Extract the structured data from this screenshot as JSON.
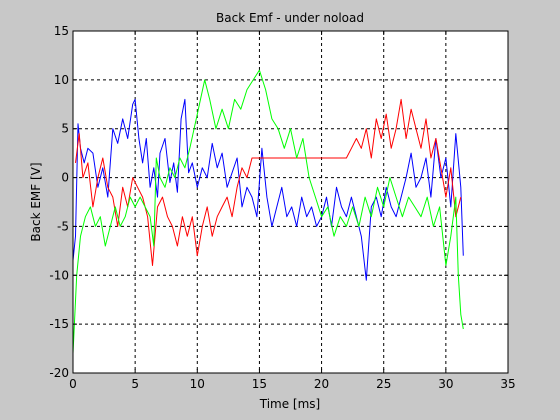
{
  "chart_data": {
    "type": "line",
    "title": "Back Emf - under noload",
    "xlabel": "Time [ms]",
    "ylabel": "Back EMF [V]",
    "xlim": [
      0,
      35
    ],
    "ylim": [
      -20,
      15
    ],
    "xticks": [
      0,
      5,
      10,
      15,
      20,
      25,
      30,
      35
    ],
    "yticks": [
      -20,
      -15,
      -10,
      -5,
      0,
      5,
      10,
      15
    ],
    "grid": true,
    "series": [
      {
        "color": "#0000ff",
        "points": [
          [
            0.0,
            -8.5
          ],
          [
            0.2,
            -6
          ],
          [
            0.4,
            5.5
          ],
          [
            0.6,
            3
          ],
          [
            0.9,
            1.5
          ],
          [
            1.2,
            3
          ],
          [
            1.6,
            2.5
          ],
          [
            2.0,
            -1
          ],
          [
            2.4,
            1
          ],
          [
            2.8,
            -2
          ],
          [
            3.2,
            5
          ],
          [
            3.6,
            3.5
          ],
          [
            4.0,
            6
          ],
          [
            4.4,
            4
          ],
          [
            4.8,
            7.5
          ],
          [
            5.0,
            8
          ],
          [
            5.3,
            4
          ],
          [
            5.6,
            1.5
          ],
          [
            5.9,
            4
          ],
          [
            6.2,
            -1
          ],
          [
            6.5,
            1
          ],
          [
            6.8,
            -2
          ],
          [
            7.0,
            2.5
          ],
          [
            7.4,
            4
          ],
          [
            7.8,
            -0.5
          ],
          [
            8.1,
            1.5
          ],
          [
            8.4,
            -1.5
          ],
          [
            8.7,
            6
          ],
          [
            9.0,
            8
          ],
          [
            9.3,
            0.5
          ],
          [
            9.6,
            1.5
          ],
          [
            10.0,
            -1
          ],
          [
            10.4,
            1
          ],
          [
            10.8,
            0
          ],
          [
            11.2,
            3.5
          ],
          [
            11.6,
            1
          ],
          [
            12.0,
            2.5
          ],
          [
            12.4,
            -1
          ],
          [
            12.8,
            0.5
          ],
          [
            13.2,
            2
          ],
          [
            13.6,
            -3
          ],
          [
            14.0,
            -1
          ],
          [
            14.4,
            -2
          ],
          [
            14.8,
            -4
          ],
          [
            15.2,
            3
          ],
          [
            15.6,
            -2
          ],
          [
            16.0,
            -5
          ],
          [
            16.4,
            -3
          ],
          [
            16.8,
            -1
          ],
          [
            17.2,
            -4
          ],
          [
            17.6,
            -3
          ],
          [
            18.0,
            -5
          ],
          [
            18.4,
            -2
          ],
          [
            18.8,
            -4
          ],
          [
            19.2,
            -3
          ],
          [
            19.6,
            -5
          ],
          [
            20.0,
            -4
          ],
          [
            20.4,
            -2
          ],
          [
            20.8,
            -5
          ],
          [
            21.2,
            -1
          ],
          [
            21.6,
            -3
          ],
          [
            22.0,
            -4
          ],
          [
            22.4,
            -2
          ],
          [
            22.8,
            -4
          ],
          [
            23.2,
            -6
          ],
          [
            23.6,
            -10.5
          ],
          [
            24.0,
            -3
          ],
          [
            24.4,
            -2
          ],
          [
            24.8,
            -4
          ],
          [
            25.2,
            -1
          ],
          [
            25.6,
            -3
          ],
          [
            26.0,
            -4
          ],
          [
            26.4,
            -2
          ],
          [
            26.8,
            0
          ],
          [
            27.2,
            2.5
          ],
          [
            27.6,
            -1
          ],
          [
            28.0,
            0
          ],
          [
            28.4,
            2
          ],
          [
            28.8,
            -2
          ],
          [
            29.2,
            4
          ],
          [
            29.6,
            0
          ],
          [
            30.0,
            2
          ],
          [
            30.4,
            -3
          ],
          [
            30.8,
            4.5
          ],
          [
            31.2,
            -1
          ],
          [
            31.4,
            -8
          ]
        ]
      },
      {
        "color": "#ff0000",
        "points": [
          [
            0.2,
            1.5
          ],
          [
            0.5,
            4.5
          ],
          [
            0.8,
            0
          ],
          [
            1.2,
            1.5
          ],
          [
            1.6,
            -3
          ],
          [
            2.0,
            0
          ],
          [
            2.4,
            2
          ],
          [
            2.8,
            -1
          ],
          [
            3.2,
            -2
          ],
          [
            3.6,
            -5
          ],
          [
            4.0,
            -1
          ],
          [
            4.4,
            -3
          ],
          [
            4.8,
            0
          ],
          [
            5.2,
            -1
          ],
          [
            5.6,
            -2
          ],
          [
            6.0,
            -4
          ],
          [
            6.4,
            -9
          ],
          [
            6.8,
            -3
          ],
          [
            7.2,
            -2
          ],
          [
            7.6,
            -4
          ],
          [
            8.0,
            -5
          ],
          [
            8.4,
            -7
          ],
          [
            8.8,
            -4
          ],
          [
            9.2,
            -6
          ],
          [
            9.6,
            -4
          ],
          [
            10.0,
            -8
          ],
          [
            10.4,
            -5
          ],
          [
            10.8,
            -3
          ],
          [
            11.2,
            -6
          ],
          [
            11.6,
            -4
          ],
          [
            12.0,
            -3
          ],
          [
            12.4,
            -2
          ],
          [
            12.8,
            -4
          ],
          [
            13.2,
            -1
          ],
          [
            13.6,
            1
          ],
          [
            14.0,
            0
          ],
          [
            14.4,
            2
          ],
          [
            22.0,
            2
          ],
          [
            22.4,
            3
          ],
          [
            22.8,
            4
          ],
          [
            23.2,
            3
          ],
          [
            23.6,
            5
          ],
          [
            24.0,
            2
          ],
          [
            24.4,
            6
          ],
          [
            24.8,
            4
          ],
          [
            25.2,
            6.5
          ],
          [
            25.6,
            3
          ],
          [
            26.0,
            5
          ],
          [
            26.4,
            8
          ],
          [
            26.8,
            4
          ],
          [
            27.2,
            7
          ],
          [
            27.6,
            5
          ],
          [
            28.0,
            3
          ],
          [
            28.4,
            6
          ],
          [
            28.8,
            2
          ],
          [
            29.2,
            4
          ],
          [
            29.6,
            1
          ],
          [
            30.0,
            -2
          ],
          [
            30.4,
            1
          ],
          [
            30.8,
            -4
          ],
          [
            31.2,
            -2
          ]
        ]
      },
      {
        "color": "#00ff00",
        "points": [
          [
            0.0,
            -18
          ],
          [
            0.3,
            -10
          ],
          [
            0.6,
            -6
          ],
          [
            1.0,
            -4
          ],
          [
            1.4,
            -3
          ],
          [
            1.8,
            -5
          ],
          [
            2.2,
            -4
          ],
          [
            2.6,
            -7
          ],
          [
            3.0,
            -5
          ],
          [
            3.4,
            -3
          ],
          [
            3.8,
            -5
          ],
          [
            4.2,
            -4
          ],
          [
            4.6,
            -2
          ],
          [
            5.0,
            -3
          ],
          [
            5.4,
            -2
          ],
          [
            5.8,
            -3
          ],
          [
            6.2,
            -4
          ],
          [
            6.5,
            -7
          ],
          [
            6.7,
            2
          ],
          [
            7.0,
            0
          ],
          [
            7.4,
            -1
          ],
          [
            7.8,
            1
          ],
          [
            8.2,
            0
          ],
          [
            8.6,
            2
          ],
          [
            9.0,
            1
          ],
          [
            9.4,
            3
          ],
          [
            10.0,
            6.5
          ],
          [
            10.6,
            10
          ],
          [
            11.0,
            8
          ],
          [
            11.5,
            5
          ],
          [
            12.0,
            7
          ],
          [
            12.5,
            5
          ],
          [
            13.0,
            8
          ],
          [
            13.5,
            7
          ],
          [
            14.0,
            9
          ],
          [
            14.5,
            10
          ],
          [
            15.0,
            11
          ],
          [
            15.5,
            9
          ],
          [
            16.0,
            6
          ],
          [
            16.5,
            5
          ],
          [
            17.0,
            3
          ],
          [
            17.5,
            5
          ],
          [
            18.0,
            2
          ],
          [
            18.5,
            4
          ],
          [
            19.0,
            0
          ],
          [
            19.5,
            -2
          ],
          [
            20.0,
            -4
          ],
          [
            20.5,
            -3
          ],
          [
            21.0,
            -6
          ],
          [
            21.5,
            -4
          ],
          [
            22.0,
            -5
          ],
          [
            22.5,
            -3
          ],
          [
            23.0,
            -5
          ],
          [
            23.5,
            -2
          ],
          [
            24.0,
            -4
          ],
          [
            24.5,
            -1
          ],
          [
            25.0,
            -3
          ],
          [
            25.5,
            0
          ],
          [
            26.0,
            -2
          ],
          [
            26.5,
            -4
          ],
          [
            27.0,
            -2
          ],
          [
            27.5,
            -3
          ],
          [
            28.0,
            -4
          ],
          [
            28.5,
            -2
          ],
          [
            29.0,
            -5
          ],
          [
            29.5,
            -3
          ],
          [
            30.0,
            -9
          ],
          [
            30.4,
            -6
          ],
          [
            30.8,
            -2
          ],
          [
            31.0,
            -10
          ],
          [
            31.2,
            -14
          ],
          [
            31.4,
            -15.5
          ]
        ]
      }
    ]
  }
}
